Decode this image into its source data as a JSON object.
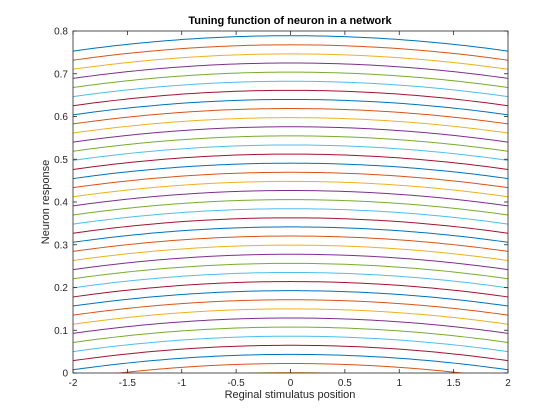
{
  "chart_data": {
    "type": "line",
    "title": "Tuning function of neuron in a network",
    "xlabel": "Reginal stimulatus position",
    "ylabel": "Neuron response",
    "xlim": [
      -2,
      2
    ],
    "ylim": [
      0,
      0.8
    ],
    "xticks": [
      "-2",
      "-1.5",
      "-1",
      "-0.5",
      "0",
      "0.5",
      "1",
      "1.5",
      "2"
    ],
    "yticks": [
      "0",
      "0.1",
      "0.2",
      "0.3",
      "0.4",
      "0.5",
      "0.6",
      "0.7",
      "0.8"
    ],
    "grid": false,
    "box": true,
    "x": [
      -2,
      -1.5,
      -1,
      -0.5,
      0,
      0.5,
      1,
      1.5,
      2
    ],
    "curves": {
      "shape": "downward parabola, maximum at x = 0",
      "count": 38,
      "peak_first": 0.789,
      "peak_step": -0.0213,
      "edge_drop": 0.036
    },
    "colors": [
      "#0072bd",
      "#d95319",
      "#edb120",
      "#7e2f8e",
      "#77ac30",
      "#4dbeee",
      "#a2142f"
    ]
  }
}
